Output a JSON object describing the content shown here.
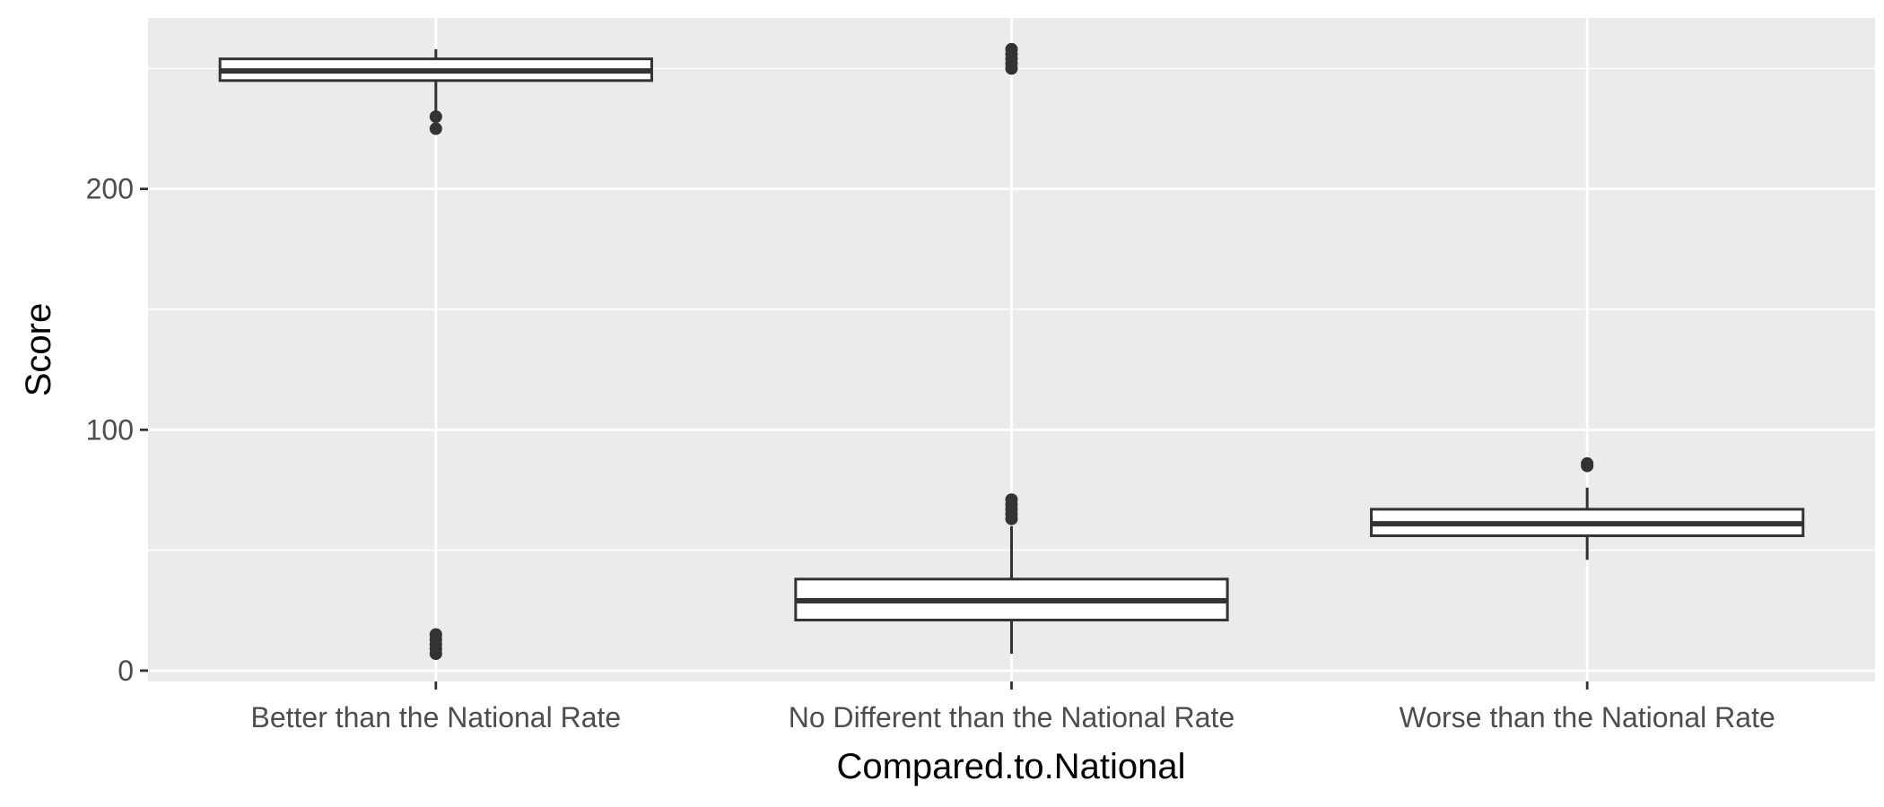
{
  "chart_data": {
    "type": "boxplot",
    "title": "",
    "xlabel": "Compared.to.National",
    "ylabel": "Score",
    "categories": [
      "Better than the National Rate",
      "No Different than the National Rate",
      "Worse than the National Rate"
    ],
    "ylim": [
      -4.5,
      271
    ],
    "y_ticks": [
      0,
      100,
      200
    ],
    "grid": true,
    "legend": "none",
    "boxes": [
      {
        "category": "Better than the National Rate",
        "whisker_low": 232,
        "q1": 245,
        "median": 249,
        "q3": 254,
        "whisker_high": 258,
        "outliers": [
          7,
          9,
          11,
          13,
          15,
          225,
          230
        ]
      },
      {
        "category": "No Different than the National Rate",
        "whisker_low": 7,
        "q1": 21,
        "median": 29,
        "q3": 38,
        "whisker_high": 60,
        "outliers": [
          63,
          65,
          67,
          69,
          71,
          250,
          252,
          254,
          256,
          258
        ]
      },
      {
        "category": "Worse than the National Rate",
        "whisker_low": 46,
        "q1": 56,
        "median": 61,
        "q3": 67,
        "whisker_high": 76,
        "outliers": [
          85,
          86
        ]
      }
    ],
    "colors": {
      "panel": "#EBEBEB",
      "grid": "#FFFFFF",
      "box_stroke": "#333333",
      "box_fill": "#FFFFFF",
      "tick_text": "#4D4D4D",
      "axis_title": "#000000"
    }
  }
}
